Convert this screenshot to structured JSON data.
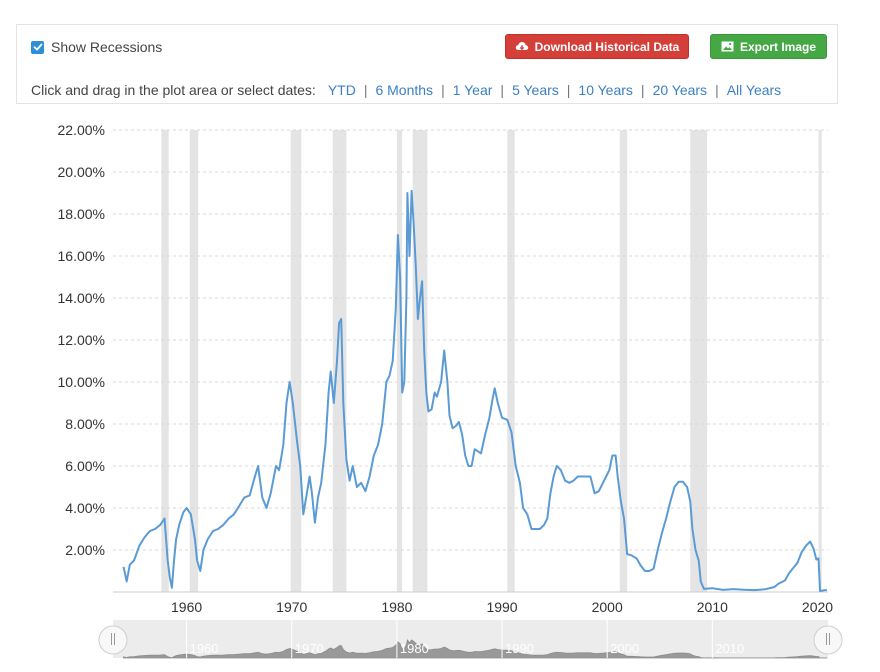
{
  "toolbar": {
    "show_recessions_label": "Show Recessions",
    "show_recessions_checked": true,
    "download_label": "Download Historical Data",
    "export_label": "Export Image",
    "range_prompt": "Click and drag in the plot area or select dates:",
    "ranges": [
      "YTD",
      "6 Months",
      "1 Year",
      "5 Years",
      "10 Years",
      "20 Years",
      "All Years"
    ]
  },
  "colors": {
    "line": "#5b9bd5",
    "recession": "#e4e4e4",
    "download_button": "#d43f3a",
    "export_button": "#45a845",
    "link": "#3b7fc4"
  },
  "icons": {
    "download": "cloud-download-icon",
    "export": "image-icon",
    "checkbox": "check-icon"
  },
  "chart_data": {
    "type": "line",
    "title": "",
    "xlabel": "",
    "ylabel": "",
    "x_ticks": [
      1960,
      1970,
      1980,
      1990,
      2000,
      2010,
      2020
    ],
    "y_ticks": [
      "2.00%",
      "4.00%",
      "6.00%",
      "8.00%",
      "10.00%",
      "12.00%",
      "14.00%",
      "16.00%",
      "18.00%",
      "20.00%",
      "22.00%"
    ],
    "xlim": [
      1953,
      2021
    ],
    "ylim": [
      0,
      22
    ],
    "grid": true,
    "recessions": [
      [
        1957.6,
        1958.3
      ],
      [
        1960.3,
        1961.1
      ],
      [
        1969.9,
        1970.9
      ],
      [
        1973.9,
        1975.2
      ],
      [
        1980.0,
        1980.5
      ],
      [
        1981.5,
        1982.9
      ],
      [
        1990.5,
        1991.2
      ],
      [
        2001.2,
        2001.9
      ],
      [
        2007.9,
        2009.5
      ],
      [
        2020.1,
        2020.4
      ]
    ],
    "navigator_labels": [
      "1960",
      "1970",
      "1980",
      "1990",
      "2000",
      "2010"
    ],
    "series": [
      {
        "values": [
          [
            1954.0,
            1.2
          ],
          [
            1954.3,
            0.5
          ],
          [
            1954.6,
            1.3
          ],
          [
            1955.0,
            1.5
          ],
          [
            1955.5,
            2.2
          ],
          [
            1956.0,
            2.6
          ],
          [
            1956.5,
            2.9
          ],
          [
            1957.0,
            3.0
          ],
          [
            1957.5,
            3.2
          ],
          [
            1957.9,
            3.5
          ],
          [
            1958.2,
            1.5
          ],
          [
            1958.4,
            0.7
          ],
          [
            1958.6,
            0.2
          ],
          [
            1958.8,
            1.5
          ],
          [
            1959.0,
            2.5
          ],
          [
            1959.3,
            3.2
          ],
          [
            1959.7,
            3.8
          ],
          [
            1960.0,
            4.0
          ],
          [
            1960.4,
            3.7
          ],
          [
            1960.8,
            2.5
          ],
          [
            1961.0,
            1.5
          ],
          [
            1961.3,
            1.0
          ],
          [
            1961.6,
            2.0
          ],
          [
            1962.0,
            2.5
          ],
          [
            1962.5,
            2.9
          ],
          [
            1963.0,
            3.0
          ],
          [
            1963.5,
            3.2
          ],
          [
            1964.0,
            3.5
          ],
          [
            1964.5,
            3.7
          ],
          [
            1965.0,
            4.1
          ],
          [
            1965.5,
            4.5
          ],
          [
            1966.0,
            4.6
          ],
          [
            1966.5,
            5.5
          ],
          [
            1966.8,
            6.0
          ],
          [
            1967.2,
            4.5
          ],
          [
            1967.6,
            4.0
          ],
          [
            1968.0,
            4.7
          ],
          [
            1968.5,
            6.0
          ],
          [
            1968.8,
            5.8
          ],
          [
            1969.2,
            7.0
          ],
          [
            1969.5,
            9.0
          ],
          [
            1969.8,
            10.0
          ],
          [
            1970.1,
            9.0
          ],
          [
            1970.5,
            7.2
          ],
          [
            1970.8,
            6.0
          ],
          [
            1971.1,
            3.7
          ],
          [
            1971.4,
            4.6
          ],
          [
            1971.7,
            5.5
          ],
          [
            1971.9,
            4.8
          ],
          [
            1972.2,
            3.3
          ],
          [
            1972.5,
            4.5
          ],
          [
            1972.8,
            5.2
          ],
          [
            1973.2,
            7.0
          ],
          [
            1973.5,
            9.5
          ],
          [
            1973.7,
            10.5
          ],
          [
            1974.0,
            9.0
          ],
          [
            1974.3,
            11.0
          ],
          [
            1974.5,
            12.8
          ],
          [
            1974.7,
            13.0
          ],
          [
            1974.9,
            9.0
          ],
          [
            1975.2,
            6.3
          ],
          [
            1975.5,
            5.3
          ],
          [
            1975.8,
            6.0
          ],
          [
            1976.2,
            5.0
          ],
          [
            1976.6,
            5.2
          ],
          [
            1977.0,
            4.8
          ],
          [
            1977.4,
            5.5
          ],
          [
            1977.8,
            6.5
          ],
          [
            1978.2,
            7.0
          ],
          [
            1978.6,
            8.0
          ],
          [
            1979.0,
            10.0
          ],
          [
            1979.3,
            10.3
          ],
          [
            1979.6,
            11.0
          ],
          [
            1979.9,
            13.5
          ],
          [
            1980.1,
            17.0
          ],
          [
            1980.3,
            15.0
          ],
          [
            1980.5,
            9.5
          ],
          [
            1980.7,
            10.0
          ],
          [
            1980.9,
            14.0
          ],
          [
            1981.0,
            19.0
          ],
          [
            1981.2,
            16.0
          ],
          [
            1981.4,
            19.1
          ],
          [
            1981.6,
            17.5
          ],
          [
            1981.8,
            15.5
          ],
          [
            1982.0,
            13.0
          ],
          [
            1982.2,
            14.0
          ],
          [
            1982.4,
            14.8
          ],
          [
            1982.6,
            11.5
          ],
          [
            1982.8,
            9.5
          ],
          [
            1983.0,
            8.6
          ],
          [
            1983.3,
            8.7
          ],
          [
            1983.6,
            9.5
          ],
          [
            1983.8,
            9.3
          ],
          [
            1984.2,
            10.0
          ],
          [
            1984.5,
            11.5
          ],
          [
            1984.8,
            10.0
          ],
          [
            1985.0,
            8.4
          ],
          [
            1985.3,
            7.8
          ],
          [
            1985.6,
            7.9
          ],
          [
            1985.9,
            8.1
          ],
          [
            1986.2,
            7.5
          ],
          [
            1986.5,
            6.5
          ],
          [
            1986.8,
            6.0
          ],
          [
            1987.1,
            6.0
          ],
          [
            1987.4,
            6.8
          ],
          [
            1987.7,
            6.7
          ],
          [
            1988.0,
            6.6
          ],
          [
            1988.4,
            7.5
          ],
          [
            1988.8,
            8.3
          ],
          [
            1989.1,
            9.2
          ],
          [
            1989.3,
            9.7
          ],
          [
            1989.6,
            9.0
          ],
          [
            1990.0,
            8.3
          ],
          [
            1990.5,
            8.2
          ],
          [
            1990.9,
            7.6
          ],
          [
            1991.3,
            6.0
          ],
          [
            1991.7,
            5.2
          ],
          [
            1992.0,
            4.0
          ],
          [
            1992.4,
            3.7
          ],
          [
            1992.8,
            3.0
          ],
          [
            1993.2,
            3.0
          ],
          [
            1993.6,
            3.0
          ],
          [
            1994.0,
            3.2
          ],
          [
            1994.3,
            3.5
          ],
          [
            1994.6,
            4.7
          ],
          [
            1994.9,
            5.5
          ],
          [
            1995.2,
            6.0
          ],
          [
            1995.6,
            5.8
          ],
          [
            1996.0,
            5.3
          ],
          [
            1996.4,
            5.2
          ],
          [
            1996.8,
            5.3
          ],
          [
            1997.2,
            5.5
          ],
          [
            1997.6,
            5.5
          ],
          [
            1998.0,
            5.5
          ],
          [
            1998.4,
            5.5
          ],
          [
            1998.8,
            4.7
          ],
          [
            1999.2,
            4.8
          ],
          [
            1999.6,
            5.2
          ],
          [
            1999.9,
            5.5
          ],
          [
            2000.2,
            5.8
          ],
          [
            2000.5,
            6.5
          ],
          [
            2000.8,
            6.5
          ],
          [
            2001.0,
            5.5
          ],
          [
            2001.3,
            4.3
          ],
          [
            2001.6,
            3.5
          ],
          [
            2001.9,
            1.8
          ],
          [
            2002.3,
            1.75
          ],
          [
            2002.8,
            1.6
          ],
          [
            2003.2,
            1.25
          ],
          [
            2003.6,
            1.0
          ],
          [
            2004.0,
            1.0
          ],
          [
            2004.4,
            1.1
          ],
          [
            2004.8,
            2.0
          ],
          [
            2005.2,
            2.8
          ],
          [
            2005.6,
            3.5
          ],
          [
            2006.0,
            4.3
          ],
          [
            2006.4,
            5.0
          ],
          [
            2006.8,
            5.25
          ],
          [
            2007.2,
            5.25
          ],
          [
            2007.6,
            5.0
          ],
          [
            2007.9,
            4.3
          ],
          [
            2008.1,
            3.0
          ],
          [
            2008.4,
            2.0
          ],
          [
            2008.7,
            1.5
          ],
          [
            2008.9,
            0.5
          ],
          [
            2009.2,
            0.15
          ],
          [
            2010.0,
            0.18
          ],
          [
            2011.0,
            0.1
          ],
          [
            2012.0,
            0.14
          ],
          [
            2013.0,
            0.11
          ],
          [
            2014.0,
            0.09
          ],
          [
            2015.0,
            0.13
          ],
          [
            2015.9,
            0.24
          ],
          [
            2016.3,
            0.4
          ],
          [
            2016.9,
            0.55
          ],
          [
            2017.3,
            0.9
          ],
          [
            2017.7,
            1.15
          ],
          [
            2018.1,
            1.4
          ],
          [
            2018.5,
            1.9
          ],
          [
            2018.9,
            2.2
          ],
          [
            2019.3,
            2.4
          ],
          [
            2019.6,
            2.1
          ],
          [
            2019.9,
            1.55
          ],
          [
            2020.1,
            1.6
          ],
          [
            2020.25,
            0.05
          ],
          [
            2020.6,
            0.08
          ],
          [
            2020.9,
            0.09
          ]
        ]
      }
    ]
  }
}
